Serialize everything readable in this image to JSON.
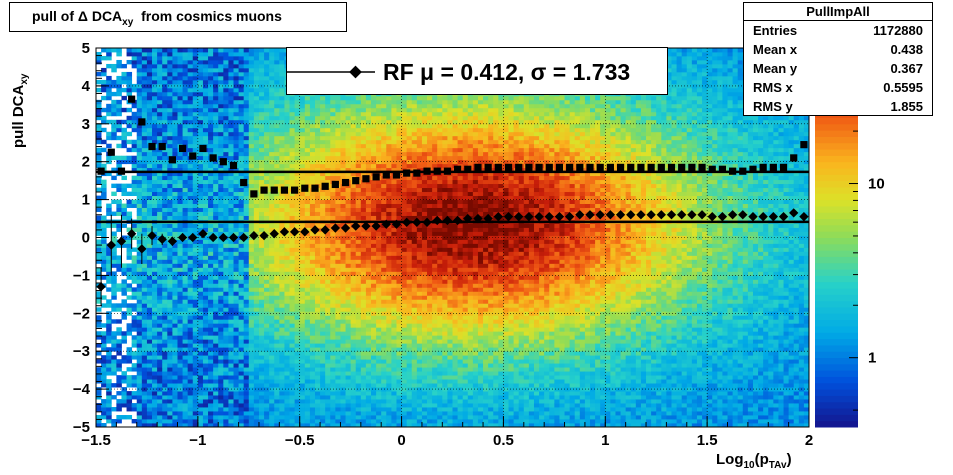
{
  "title": "pull of Δ DCA",
  "title_sub": "xy",
  "title_suffix": "from cosmics muons",
  "stats": {
    "name": "PullImpAll",
    "rows": [
      {
        "label": "Entries",
        "value": "1172880"
      },
      {
        "label": "Mean x",
        "value": "0.438"
      },
      {
        "label": "Mean y",
        "value": "0.367"
      },
      {
        "label": "RMS x",
        "value": "0.5595"
      },
      {
        "label": "RMS y",
        "value": "1.855"
      }
    ]
  },
  "legend_text": "RF μ =  0.412, σ =   1.733",
  "ylabel": "pull DCA",
  "ylabel_sub": "xy",
  "xlabel": "Log",
  "xlabel_sub": "10",
  "xlabel_mid": "(p",
  "xlabel_sub2": "TAv",
  "xlabel_end": ")",
  "chart_data": {
    "type": "heatmap",
    "xlim": [
      -1.5,
      2
    ],
    "ylim": [
      -5,
      5
    ],
    "xticks": [
      -1.5,
      -1,
      -0.5,
      0,
      0.5,
      1,
      1.5,
      2
    ],
    "xtick_labels": [
      "−1.5",
      "−1",
      "−0.5",
      "0",
      "0.5",
      "1",
      "1.5",
      "2"
    ],
    "yticks": [
      -5,
      -4,
      -3,
      -2,
      -1,
      0,
      1,
      2,
      3,
      4,
      5
    ],
    "ytick_labels": [
      "−5",
      "−4",
      "−3",
      "−2",
      "−1",
      "0",
      "1",
      "2",
      "3",
      "4",
      "5"
    ],
    "colorbar_ticks": [
      1,
      10
    ],
    "colorbar_labels": [
      "1",
      "10"
    ],
    "grid": true,
    "hlines": [
      0.412,
      1.733
    ],
    "mean_series": {
      "x": [
        -1.475,
        -1.425,
        -1.375,
        -1.325,
        -1.275,
        -1.225,
        -1.175,
        -1.125,
        -1.075,
        -1.025,
        -0.975,
        -0.925,
        -0.875,
        -0.825,
        -0.775,
        -0.725,
        -0.675,
        -0.625,
        -0.575,
        -0.525,
        -0.475,
        -0.425,
        -0.375,
        -0.325,
        -0.275,
        -0.225,
        -0.175,
        -0.125,
        -0.075,
        -0.025,
        0.025,
        0.075,
        0.125,
        0.175,
        0.225,
        0.275,
        0.325,
        0.375,
        0.425,
        0.475,
        0.525,
        0.575,
        0.625,
        0.675,
        0.725,
        0.775,
        0.825,
        0.875,
        0.925,
        0.975,
        1.025,
        1.075,
        1.125,
        1.175,
        1.225,
        1.275,
        1.325,
        1.375,
        1.425,
        1.475,
        1.525,
        1.575,
        1.625,
        1.675,
        1.725,
        1.775,
        1.825,
        1.875,
        1.925,
        1.975
      ],
      "y": [
        -1.3,
        -0.2,
        -0.1,
        0.1,
        -0.3,
        0.05,
        -0.05,
        -0.1,
        0.0,
        0.0,
        0.1,
        0.0,
        0.0,
        0.0,
        0.0,
        0.05,
        0.05,
        0.1,
        0.15,
        0.15,
        0.15,
        0.2,
        0.2,
        0.25,
        0.25,
        0.3,
        0.3,
        0.3,
        0.35,
        0.35,
        0.4,
        0.4,
        0.4,
        0.45,
        0.45,
        0.45,
        0.5,
        0.5,
        0.5,
        0.55,
        0.55,
        0.55,
        0.55,
        0.55,
        0.55,
        0.55,
        0.55,
        0.6,
        0.6,
        0.6,
        0.6,
        0.6,
        0.6,
        0.6,
        0.6,
        0.6,
        0.6,
        0.6,
        0.6,
        0.6,
        0.55,
        0.55,
        0.6,
        0.6,
        0.55,
        0.55,
        0.55,
        0.55,
        0.65,
        0.55
      ],
      "err": [
        0.5,
        0.8,
        0.7,
        0.4,
        0.4,
        0.25,
        0.15,
        0.12,
        0.1,
        0.08,
        0.07,
        0.06,
        0.05,
        0.04,
        0.03,
        0.03,
        0.03,
        0.02,
        0.02,
        0.02,
        0.02,
        0.02,
        0.02,
        0.02,
        0.02,
        0.02,
        0.02,
        0.02,
        0.02,
        0.02,
        0.02,
        0.02,
        0.02,
        0.02,
        0.02,
        0.02,
        0.02,
        0.02,
        0.02,
        0.02,
        0.02,
        0.02,
        0.02,
        0.02,
        0.02,
        0.02,
        0.02,
        0.02,
        0.02,
        0.02,
        0.02,
        0.02,
        0.02,
        0.02,
        0.02,
        0.02,
        0.02,
        0.02,
        0.02,
        0.02,
        0.02,
        0.02,
        0.02,
        0.02,
        0.02,
        0.03,
        0.03,
        0.04,
        0.05,
        0.06
      ]
    },
    "rms_series": {
      "x": [
        -1.475,
        -1.425,
        -1.375,
        -1.325,
        -1.275,
        -1.225,
        -1.175,
        -1.125,
        -1.075,
        -1.025,
        -0.975,
        -0.925,
        -0.875,
        -0.825,
        -0.775,
        -0.725,
        -0.675,
        -0.625,
        -0.575,
        -0.525,
        -0.475,
        -0.425,
        -0.375,
        -0.325,
        -0.275,
        -0.225,
        -0.175,
        -0.125,
        -0.075,
        -0.025,
        0.025,
        0.075,
        0.125,
        0.175,
        0.225,
        0.275,
        0.325,
        0.375,
        0.425,
        0.475,
        0.525,
        0.575,
        0.625,
        0.675,
        0.725,
        0.775,
        0.825,
        0.875,
        0.925,
        0.975,
        1.025,
        1.075,
        1.125,
        1.175,
        1.225,
        1.275,
        1.325,
        1.375,
        1.425,
        1.475,
        1.525,
        1.575,
        1.625,
        1.675,
        1.725,
        1.775,
        1.825,
        1.875,
        1.925,
        1.975
      ],
      "y": [
        1.75,
        2.25,
        1.75,
        3.65,
        3.05,
        2.4,
        2.4,
        2.05,
        2.35,
        2.15,
        2.35,
        2.1,
        2.0,
        1.9,
        1.45,
        1.15,
        1.25,
        1.25,
        1.25,
        1.25,
        1.3,
        1.3,
        1.35,
        1.4,
        1.45,
        1.5,
        1.55,
        1.6,
        1.65,
        1.65,
        1.7,
        1.7,
        1.75,
        1.75,
        1.75,
        1.8,
        1.8,
        1.85,
        1.85,
        1.85,
        1.85,
        1.85,
        1.85,
        1.85,
        1.85,
        1.85,
        1.85,
        1.85,
        1.85,
        1.85,
        1.85,
        1.85,
        1.85,
        1.85,
        1.85,
        1.85,
        1.85,
        1.85,
        1.85,
        1.85,
        1.8,
        1.8,
        1.75,
        1.75,
        1.8,
        1.85,
        1.85,
        1.85,
        2.1,
        2.45
      ]
    }
  }
}
